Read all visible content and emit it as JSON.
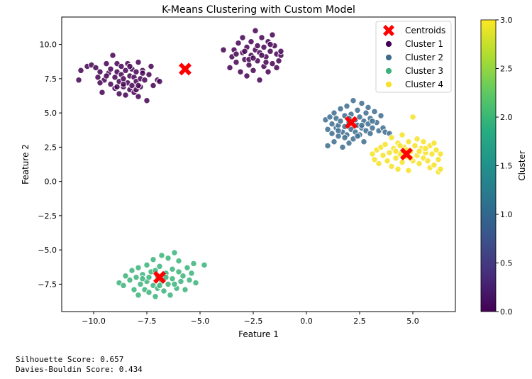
{
  "chart_data": {
    "type": "scatter",
    "title": "K-Means Clustering with Custom Model",
    "xlabel": "Feature 1",
    "ylabel": "Feature 2",
    "xlim": [
      -11.5,
      7.0
    ],
    "ylim": [
      -9.5,
      12.0
    ],
    "xticks": [
      -10.0,
      -7.5,
      -5.0,
      -2.5,
      0.0,
      2.5,
      5.0
    ],
    "xtick_labels": [
      "−10.0",
      "−7.5",
      "−5.0",
      "−2.5",
      "0.0",
      "2.5",
      "5.0"
    ],
    "yticks": [
      -7.5,
      -5.0,
      -2.5,
      0.0,
      2.5,
      5.0,
      7.5,
      10.0
    ],
    "ytick_labels": [
      "−7.5",
      "−5.0",
      "−2.5",
      "0.0",
      "2.5",
      "5.0",
      "7.5",
      "10.0"
    ],
    "grid": false,
    "legend_position": "top-right",
    "colormap": "viridis",
    "series": [
      {
        "name": "Cluster 1",
        "color": "#440154",
        "points": [
          [
            -10.7,
            7.4
          ],
          [
            -10.6,
            8.1
          ],
          [
            -10.3,
            8.4
          ],
          [
            -10.1,
            8.5
          ],
          [
            -9.9,
            8.3
          ],
          [
            -9.8,
            7.6
          ],
          [
            -9.7,
            8.0
          ],
          [
            -9.6,
            6.5
          ],
          [
            -9.5,
            7.4
          ],
          [
            -9.4,
            8.6
          ],
          [
            -9.3,
            7.9
          ],
          [
            -9.2,
            7.1
          ],
          [
            -9.2,
            8.2
          ],
          [
            -9.1,
            9.2
          ],
          [
            -9.0,
            6.8
          ],
          [
            -9.0,
            7.6
          ],
          [
            -8.9,
            8.0
          ],
          [
            -8.9,
            8.6
          ],
          [
            -8.8,
            7.3
          ],
          [
            -8.8,
            6.4
          ],
          [
            -8.7,
            7.8
          ],
          [
            -8.7,
            8.4
          ],
          [
            -8.6,
            6.9
          ],
          [
            -8.6,
            7.5
          ],
          [
            -8.5,
            8.1
          ],
          [
            -8.5,
            6.3
          ],
          [
            -8.4,
            7.2
          ],
          [
            -8.4,
            8.6
          ],
          [
            -8.3,
            7.7
          ],
          [
            -8.3,
            6.7
          ],
          [
            -8.2,
            8.2
          ],
          [
            -8.2,
            7.0
          ],
          [
            -8.1,
            7.6
          ],
          [
            -8.1,
            6.5
          ],
          [
            -8.0,
            8.0
          ],
          [
            -8.0,
            7.3
          ],
          [
            -7.9,
            6.2
          ],
          [
            -7.9,
            8.7
          ],
          [
            -7.8,
            7.5
          ],
          [
            -7.8,
            6.9
          ],
          [
            -7.7,
            8.1
          ],
          [
            -7.6,
            7.4
          ],
          [
            -7.5,
            5.9
          ],
          [
            -7.4,
            7.8
          ],
          [
            -7.3,
            8.4
          ],
          [
            -7.2,
            7.0
          ],
          [
            -7.0,
            7.4
          ],
          [
            -6.9,
            7.3
          ],
          [
            -9.4,
            7.7
          ],
          [
            -8.6,
            7.1
          ],
          [
            -8.0,
            6.7
          ],
          [
            -7.7,
            7.9
          ],
          [
            -8.9,
            6.9
          ],
          [
            -9.7,
            7.2
          ],
          [
            -8.3,
            8.4
          ],
          [
            -7.9,
            7.0
          ],
          [
            -3.9,
            9.6
          ],
          [
            -3.6,
            8.3
          ],
          [
            -3.5,
            9.1
          ],
          [
            -3.4,
            9.6
          ],
          [
            -3.3,
            8.7
          ],
          [
            -3.2,
            10.1
          ],
          [
            -3.1,
            8.0
          ],
          [
            -3.0,
            9.4
          ],
          [
            -3.0,
            10.5
          ],
          [
            -2.9,
            8.9
          ],
          [
            -2.8,
            9.8
          ],
          [
            -2.8,
            7.7
          ],
          [
            -2.7,
            8.5
          ],
          [
            -2.6,
            9.2
          ],
          [
            -2.6,
            10.2
          ],
          [
            -2.5,
            8.1
          ],
          [
            -2.4,
            9.6
          ],
          [
            -2.4,
            11.0
          ],
          [
            -2.3,
            8.8
          ],
          [
            -2.2,
            9.4
          ],
          [
            -2.2,
            7.4
          ],
          [
            -2.1,
            10.5
          ],
          [
            -2.0,
            8.4
          ],
          [
            -2.0,
            9.8
          ],
          [
            -1.9,
            9.1
          ],
          [
            -1.8,
            8.0
          ],
          [
            -1.8,
            10.2
          ],
          [
            -1.7,
            9.5
          ],
          [
            -1.6,
            8.6
          ],
          [
            -1.6,
            10.7
          ],
          [
            -1.5,
            9.9
          ],
          [
            -1.4,
            8.3
          ],
          [
            -1.4,
            9.3
          ],
          [
            -1.3,
            8.8
          ],
          [
            -1.2,
            9.2
          ],
          [
            -1.2,
            9.5
          ],
          [
            -3.3,
            9.3
          ],
          [
            -2.7,
            8.9
          ],
          [
            -2.3,
            9.9
          ],
          [
            -1.9,
            8.7
          ],
          [
            -2.9,
            9.5
          ],
          [
            -2.1,
            9.2
          ],
          [
            -1.7,
            10.0
          ],
          [
            -2.5,
            9.0
          ]
        ]
      },
      {
        "name": "Cluster 2",
        "color": "#3b6c8e",
        "points": [
          [
            0.9,
            4.5
          ],
          [
            1.0,
            3.8
          ],
          [
            1.0,
            2.6
          ],
          [
            1.1,
            4.7
          ],
          [
            1.2,
            3.5
          ],
          [
            1.2,
            4.2
          ],
          [
            1.3,
            5.0
          ],
          [
            1.3,
            2.9
          ],
          [
            1.4,
            3.9
          ],
          [
            1.4,
            4.6
          ],
          [
            1.5,
            3.3
          ],
          [
            1.5,
            4.1
          ],
          [
            1.6,
            5.3
          ],
          [
            1.6,
            4.4
          ],
          [
            1.7,
            3.6
          ],
          [
            1.7,
            2.5
          ],
          [
            1.8,
            4.8
          ],
          [
            1.8,
            4.0
          ],
          [
            1.9,
            3.4
          ],
          [
            1.9,
            5.5
          ],
          [
            2.0,
            4.3
          ],
          [
            2.0,
            2.8
          ],
          [
            2.1,
            3.8
          ],
          [
            2.1,
            4.9
          ],
          [
            2.2,
            5.9
          ],
          [
            2.2,
            3.1
          ],
          [
            2.3,
            4.5
          ],
          [
            2.3,
            3.6
          ],
          [
            2.4,
            5.2
          ],
          [
            2.4,
            4.1
          ],
          [
            2.5,
            3.4
          ],
          [
            2.5,
            4.7
          ],
          [
            2.6,
            5.7
          ],
          [
            2.6,
            3.9
          ],
          [
            2.7,
            4.4
          ],
          [
            2.7,
            2.9
          ],
          [
            2.8,
            5.0
          ],
          [
            2.8,
            3.7
          ],
          [
            2.9,
            4.2
          ],
          [
            2.9,
            5.4
          ],
          [
            3.0,
            3.5
          ],
          [
            3.0,
            4.6
          ],
          [
            3.1,
            3.9
          ],
          [
            3.2,
            5.1
          ],
          [
            3.3,
            4.3
          ],
          [
            3.4,
            3.7
          ],
          [
            3.5,
            4.8
          ],
          [
            3.6,
            3.9
          ],
          [
            3.7,
            3.6
          ],
          [
            3.9,
            3.5
          ],
          [
            1.5,
            3.7
          ],
          [
            2.0,
            4.6
          ],
          [
            2.6,
            4.1
          ],
          [
            3.1,
            4.4
          ],
          [
            1.8,
            3.2
          ],
          [
            2.4,
            3.3
          ]
        ]
      },
      {
        "name": "Cluster 3",
        "color": "#3ab37a",
        "points": [
          [
            -8.8,
            -7.4
          ],
          [
            -8.6,
            -7.6
          ],
          [
            -8.5,
            -6.9
          ],
          [
            -8.3,
            -7.2
          ],
          [
            -8.2,
            -6.5
          ],
          [
            -8.1,
            -7.9
          ],
          [
            -8.0,
            -7.0
          ],
          [
            -7.9,
            -6.3
          ],
          [
            -7.9,
            -8.3
          ],
          [
            -7.8,
            -7.5
          ],
          [
            -7.7,
            -6.8
          ],
          [
            -7.6,
            -7.9
          ],
          [
            -7.5,
            -6.1
          ],
          [
            -7.5,
            -7.3
          ],
          [
            -7.4,
            -8.1
          ],
          [
            -7.3,
            -6.6
          ],
          [
            -7.2,
            -7.6
          ],
          [
            -7.2,
            -5.7
          ],
          [
            -7.1,
            -8.4
          ],
          [
            -7.0,
            -6.9
          ],
          [
            -7.0,
            -7.8
          ],
          [
            -6.9,
            -6.2
          ],
          [
            -6.8,
            -7.3
          ],
          [
            -6.8,
            -5.4
          ],
          [
            -6.7,
            -8.0
          ],
          [
            -6.6,
            -6.7
          ],
          [
            -6.5,
            -7.5
          ],
          [
            -6.5,
            -5.6
          ],
          [
            -6.4,
            -8.3
          ],
          [
            -6.3,
            -6.4
          ],
          [
            -6.3,
            -7.1
          ],
          [
            -6.2,
            -5.2
          ],
          [
            -6.1,
            -7.8
          ],
          [
            -6.0,
            -6.6
          ],
          [
            -6.0,
            -5.8
          ],
          [
            -5.9,
            -7.3
          ],
          [
            -5.8,
            -6.9
          ],
          [
            -5.7,
            -7.9
          ],
          [
            -5.6,
            -6.3
          ],
          [
            -5.5,
            -7.2
          ],
          [
            -5.4,
            -6.7
          ],
          [
            -5.3,
            -6.0
          ],
          [
            -5.2,
            -7.4
          ],
          [
            -4.8,
            -6.1
          ],
          [
            -7.7,
            -7.1
          ],
          [
            -7.1,
            -6.5
          ],
          [
            -6.6,
            -7.0
          ],
          [
            -6.2,
            -7.5
          ],
          [
            -7.4,
            -7.0
          ],
          [
            -6.9,
            -7.6
          ]
        ]
      },
      {
        "name": "Cluster 4",
        "color": "#f7e225",
        "points": [
          [
            3.1,
            2.0
          ],
          [
            3.2,
            1.6
          ],
          [
            3.3,
            2.3
          ],
          [
            3.4,
            1.3
          ],
          [
            3.5,
            2.5
          ],
          [
            3.6,
            1.9
          ],
          [
            3.7,
            2.7
          ],
          [
            3.8,
            1.5
          ],
          [
            3.9,
            2.1
          ],
          [
            4.0,
            1.1
          ],
          [
            4.0,
            3.2
          ],
          [
            4.1,
            2.4
          ],
          [
            4.2,
            1.7
          ],
          [
            4.3,
            2.8
          ],
          [
            4.3,
            0.9
          ],
          [
            4.4,
            2.0
          ],
          [
            4.5,
            1.4
          ],
          [
            4.5,
            3.4
          ],
          [
            4.6,
            2.5
          ],
          [
            4.7,
            1.8
          ],
          [
            4.8,
            2.9
          ],
          [
            4.8,
            0.8
          ],
          [
            4.9,
            2.2
          ],
          [
            5.0,
            1.5
          ],
          [
            5.0,
            4.7
          ],
          [
            5.1,
            2.6
          ],
          [
            5.2,
            1.9
          ],
          [
            5.2,
            3.1
          ],
          [
            5.3,
            1.3
          ],
          [
            5.4,
            2.4
          ],
          [
            5.5,
            1.7
          ],
          [
            5.5,
            2.9
          ],
          [
            5.6,
            2.1
          ],
          [
            5.7,
            1.5
          ],
          [
            5.8,
            2.6
          ],
          [
            5.8,
            1.0
          ],
          [
            5.9,
            2.0
          ],
          [
            6.0,
            2.8
          ],
          [
            6.0,
            1.2
          ],
          [
            6.1,
            2.3
          ],
          [
            6.2,
            1.6
          ],
          [
            6.2,
            0.7
          ],
          [
            6.3,
            2.0
          ],
          [
            6.3,
            0.9
          ],
          [
            4.2,
            2.2
          ],
          [
            4.7,
            2.3
          ],
          [
            5.3,
            2.2
          ],
          [
            4.9,
            1.7
          ],
          [
            5.6,
            2.4
          ],
          [
            4.4,
            2.6
          ]
        ]
      }
    ],
    "centroids": {
      "name": "Centroids",
      "color": "#ff0000",
      "points": [
        [
          -5.7,
          8.2
        ],
        [
          2.1,
          4.3
        ],
        [
          -6.9,
          -7.0
        ],
        [
          4.7,
          2.0
        ]
      ]
    },
    "colorbar": {
      "label": "Cluster",
      "range": [
        0.0,
        3.0
      ],
      "ticks": [
        0.0,
        0.5,
        1.0,
        1.5,
        2.0,
        2.5,
        3.0
      ],
      "tick_labels": [
        "0.0",
        "0.5",
        "1.0",
        "1.5",
        "2.0",
        "2.5",
        "3.0"
      ]
    }
  },
  "scores": {
    "silhouette": "Silhouette Score: 0.657",
    "davies_bouldin": "Davies-Bouldin Score: 0.434"
  }
}
